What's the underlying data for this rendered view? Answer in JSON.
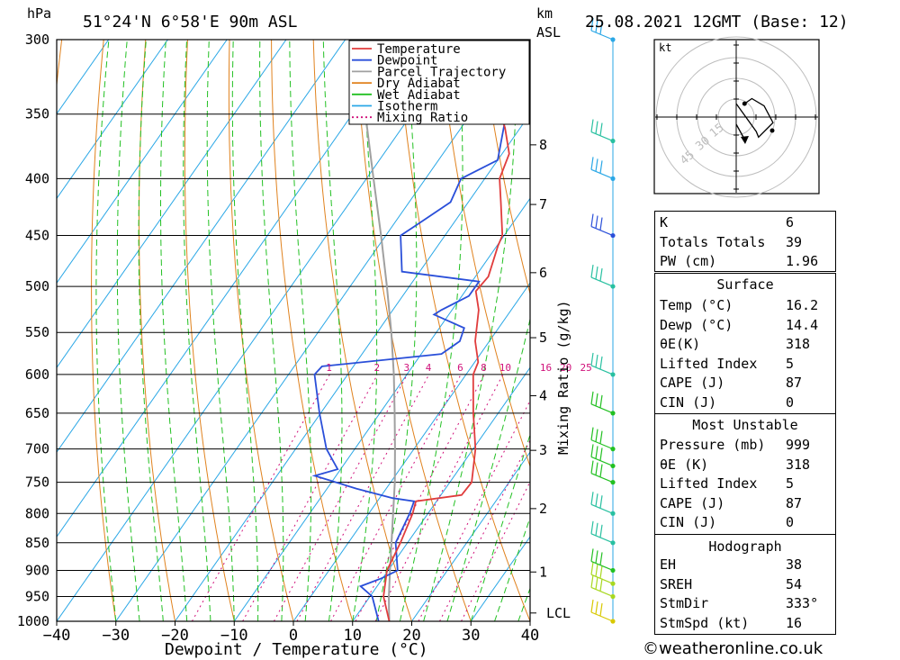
{
  "header": {
    "hpa_unit": "hPa",
    "location": "51°24'N  6°58'E  90m  ASL",
    "km_unit": "km",
    "asl_unit": "ASL",
    "datetime": "25.08.2021  12GMT  (Base: 12)"
  },
  "chart_data": {
    "type": "line",
    "title": "",
    "xlabel": "Dewpoint / Temperature (°C)",
    "ylabel": "hPa",
    "xlim": [
      -40,
      40
    ],
    "ylim": [
      1000,
      300
    ],
    "x_ticks": [
      "−40",
      "−30",
      "−20",
      "−10",
      "0",
      "10",
      "20",
      "30",
      "40"
    ],
    "pressure_ticks": [
      "300",
      "350",
      "400",
      "450",
      "500",
      "550",
      "600",
      "650",
      "700",
      "750",
      "800",
      "850",
      "900",
      "950",
      "1000"
    ],
    "height_labels": [
      "8",
      "7",
      "6",
      "5",
      "4",
      "3",
      "2",
      "1",
      "LCL"
    ],
    "mixing_ratio_axis_label": "Mixing Ratio (g/kg)",
    "mixing_ratio_labels": [
      "1",
      "2",
      "3",
      "4",
      "6",
      "8",
      "10",
      "16",
      "20",
      "25"
    ],
    "legend": [
      {
        "name": "Temperature",
        "color": "#e03c3c"
      },
      {
        "name": "Dewpoint",
        "color": "#2a4fd9"
      },
      {
        "name": "Parcel Trajectory",
        "color": "#a0a0a0"
      },
      {
        "name": "Dry Adiabat",
        "color": "#e0821e"
      },
      {
        "name": "Wet Adiabat",
        "color": "#22c022"
      },
      {
        "name": "Isotherm",
        "color": "#2aa7e6"
      },
      {
        "name": "Mixing Ratio",
        "color": "#d0107a"
      }
    ],
    "legend_position": "top-right",
    "series": [
      {
        "name": "Temperature",
        "points": [
          [
            1000,
            16.2
          ],
          [
            950,
            12.3
          ],
          [
            900,
            9.8
          ],
          [
            850,
            8.8
          ],
          [
            800,
            7.4
          ],
          [
            780,
            6.5
          ],
          [
            770,
            13.5
          ],
          [
            750,
            13.7
          ],
          [
            700,
            10.4
          ],
          [
            650,
            5.8
          ],
          [
            600,
            1.2
          ],
          [
            585,
            0.6
          ],
          [
            560,
            -2.4
          ],
          [
            525,
            -5.5
          ],
          [
            505,
            -8.2
          ],
          [
            490,
            -7.8
          ],
          [
            460,
            -9.8
          ],
          [
            450,
            -10.3
          ],
          [
            420,
            -14.5
          ],
          [
            400,
            -17.5
          ],
          [
            380,
            -18.8
          ],
          [
            360,
            -22.6
          ],
          [
            350,
            -25
          ],
          [
            300,
            -34
          ]
        ]
      },
      {
        "name": "Dewpoint",
        "points": [
          [
            1000,
            14.4
          ],
          [
            950,
            10.4
          ],
          [
            930,
            7.2
          ],
          [
            915,
            9.8
          ],
          [
            900,
            11.6
          ],
          [
            850,
            8.0
          ],
          [
            800,
            6.9
          ],
          [
            780,
            6.2
          ],
          [
            775,
            2.2
          ],
          [
            760,
            -5
          ],
          [
            740,
            -13.6
          ],
          [
            730,
            -10.5
          ],
          [
            700,
            -14.8
          ],
          [
            650,
            -20.2
          ],
          [
            600,
            -25.6
          ],
          [
            590,
            -25.3
          ],
          [
            575,
            -6.6
          ],
          [
            560,
            -5
          ],
          [
            545,
            -5.8
          ],
          [
            530,
            -12.5
          ],
          [
            525,
            -11.8
          ],
          [
            510,
            -8.8
          ],
          [
            495,
            -8.8
          ],
          [
            485,
            -23.0
          ],
          [
            450,
            -27.5
          ],
          [
            440,
            -26
          ],
          [
            420,
            -23
          ],
          [
            400,
            -24
          ],
          [
            385,
            -20
          ],
          [
            350,
            -24
          ]
        ]
      },
      {
        "name": "Parcel Trajectory",
        "points": [
          [
            1000,
            16.2
          ],
          [
            975,
            14.7
          ],
          [
            950,
            13.2
          ],
          [
            900,
            10.3
          ],
          [
            850,
            7.3
          ],
          [
            800,
            4.1
          ],
          [
            750,
            0.7
          ],
          [
            700,
            -3.2
          ],
          [
            650,
            -7.5
          ],
          [
            600,
            -12.2
          ],
          [
            550,
            -17.6
          ],
          [
            500,
            -23.8
          ],
          [
            450,
            -30.8
          ],
          [
            400,
            -38.8
          ],
          [
            350,
            -47.8
          ],
          [
            300,
            -58
          ]
        ]
      }
    ],
    "wind_barbs": [
      {
        "p": 1000,
        "color": "#d8c800"
      },
      {
        "p": 950,
        "color": "#a8d820"
      },
      {
        "p": 925,
        "color": "#a8d820"
      },
      {
        "p": 900,
        "color": "#22c022"
      },
      {
        "p": 850,
        "color": "#28c0a0"
      },
      {
        "p": 800,
        "color": "#28c0a0"
      },
      {
        "p": 750,
        "color": "#22c022"
      },
      {
        "p": 725,
        "color": "#22c022"
      },
      {
        "p": 700,
        "color": "#22c022"
      },
      {
        "p": 650,
        "color": "#22c022"
      },
      {
        "p": 600,
        "color": "#28c0a0"
      },
      {
        "p": 500,
        "color": "#28c0a0"
      },
      {
        "p": 450,
        "color": "#2a4fd9"
      },
      {
        "p": 400,
        "color": "#2aa7e6"
      },
      {
        "p": 370,
        "color": "#28c0a0"
      },
      {
        "p": 300,
        "color": "#2aa7e6"
      }
    ],
    "hodograph": {
      "unit": "kt",
      "ring_labels": [
        "15",
        "30",
        "45"
      ],
      "trace": [
        [
          1.5,
          2.4
        ],
        [
          2.8,
          3.3
        ],
        [
          5.0,
          2.0
        ],
        [
          6.6,
          -1.0
        ],
        [
          4.0,
          -3.6
        ],
        [
          3.6,
          -2.6
        ],
        [
          0.0,
          2.4
        ]
      ],
      "storm_motion_kt": 16,
      "storm_dir_deg": 333
    }
  },
  "indices": {
    "rows": [
      {
        "label": "K",
        "value": "6"
      },
      {
        "label": "Totals Totals",
        "value": "39"
      },
      {
        "label": "PW (cm)",
        "value": "1.96"
      }
    ]
  },
  "surface": {
    "title": "Surface",
    "rows": [
      {
        "label": "Temp (°C)",
        "value": "16.2"
      },
      {
        "label": "Dewp (°C)",
        "value": "14.4"
      },
      {
        "label": "θE(K)",
        "value": "318"
      },
      {
        "label": "Lifted Index",
        "value": "5"
      },
      {
        "label": "CAPE (J)",
        "value": "87"
      },
      {
        "label": "CIN (J)",
        "value": "0"
      }
    ]
  },
  "most_unstable": {
    "title": "Most Unstable",
    "rows": [
      {
        "label": "Pressure (mb)",
        "value": "999"
      },
      {
        "label": "θE (K)",
        "value": "318"
      },
      {
        "label": "Lifted Index",
        "value": "5"
      },
      {
        "label": "CAPE (J)",
        "value": "87"
      },
      {
        "label": "CIN (J)",
        "value": "0"
      }
    ]
  },
  "hodograph_table": {
    "title": "Hodograph",
    "rows": [
      {
        "label": "EH",
        "value": "38"
      },
      {
        "label": "SREH",
        "value": "54"
      },
      {
        "label": "StmDir",
        "value": "333°"
      },
      {
        "label": "StmSpd (kt)",
        "value": "16"
      }
    ]
  },
  "footer": {
    "copyright": "©weatheronline.co.uk"
  }
}
